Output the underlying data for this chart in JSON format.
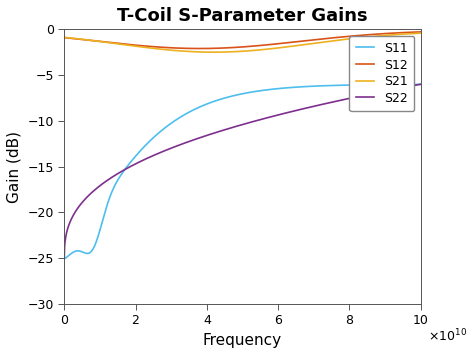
{
  "title": "T-Coil S-Parameter Gains",
  "xlabel": "Frequency",
  "ylabel": "Gain (dB)",
  "xlim": [
    0,
    10000000000.0
  ],
  "ylim": [
    -30,
    0
  ],
  "yticks": [
    0,
    -5,
    -10,
    -15,
    -20,
    -25,
    -30
  ],
  "legend": [
    "S11",
    "S12",
    "S21",
    "S22"
  ],
  "colors": {
    "S11": "#4DBEEE",
    "S12": "#D95319",
    "S21": "#EDB120",
    "S22": "#7E2F8E"
  },
  "linewidth": 1.2,
  "background_color": "#FFFFFF",
  "figsize": [
    4.74,
    3.55
  ],
  "dpi": 100
}
